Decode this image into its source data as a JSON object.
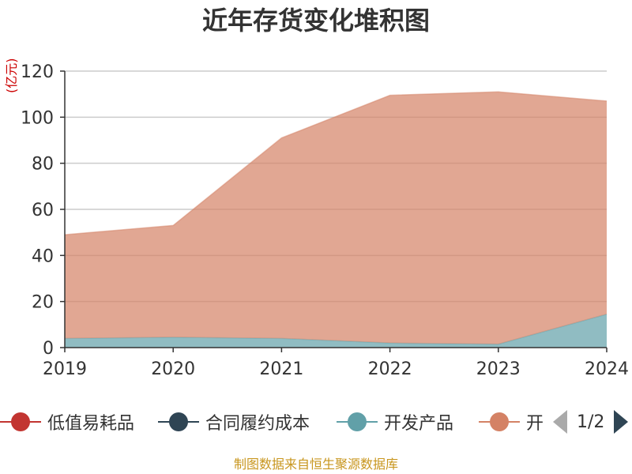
{
  "title": "近年存货变化堆积图",
  "unit_label": "(亿元)",
  "source": "制图数据来自恒生聚源数据库",
  "legend": {
    "items": [
      {
        "name": "低值易耗品",
        "color": "#c23531"
      },
      {
        "name": "合同履约成本",
        "color": "#2f4554"
      },
      {
        "name": "开发产品",
        "color": "#61a0a8"
      },
      {
        "name": "开",
        "color": "#d48265"
      }
    ],
    "page_text": "1/2"
  },
  "chart_data": {
    "type": "area",
    "stacked": true,
    "x": [
      "2019",
      "2020",
      "2021",
      "2022",
      "2023",
      "2024"
    ],
    "ylim": [
      0,
      120
    ],
    "yticks": [
      0,
      20,
      40,
      60,
      80,
      100,
      120
    ],
    "ylabel": "(亿元)",
    "grid": true,
    "legend_position": "bottom",
    "series": [
      {
        "name": "开发产品",
        "color": "#61a0a8",
        "values": [
          4,
          4.5,
          4,
          2,
          1.5,
          14.5
        ]
      },
      {
        "name": "开",
        "color": "#d48265",
        "values": [
          45,
          48.5,
          87,
          107.5,
          109.5,
          92.5
        ]
      }
    ]
  }
}
